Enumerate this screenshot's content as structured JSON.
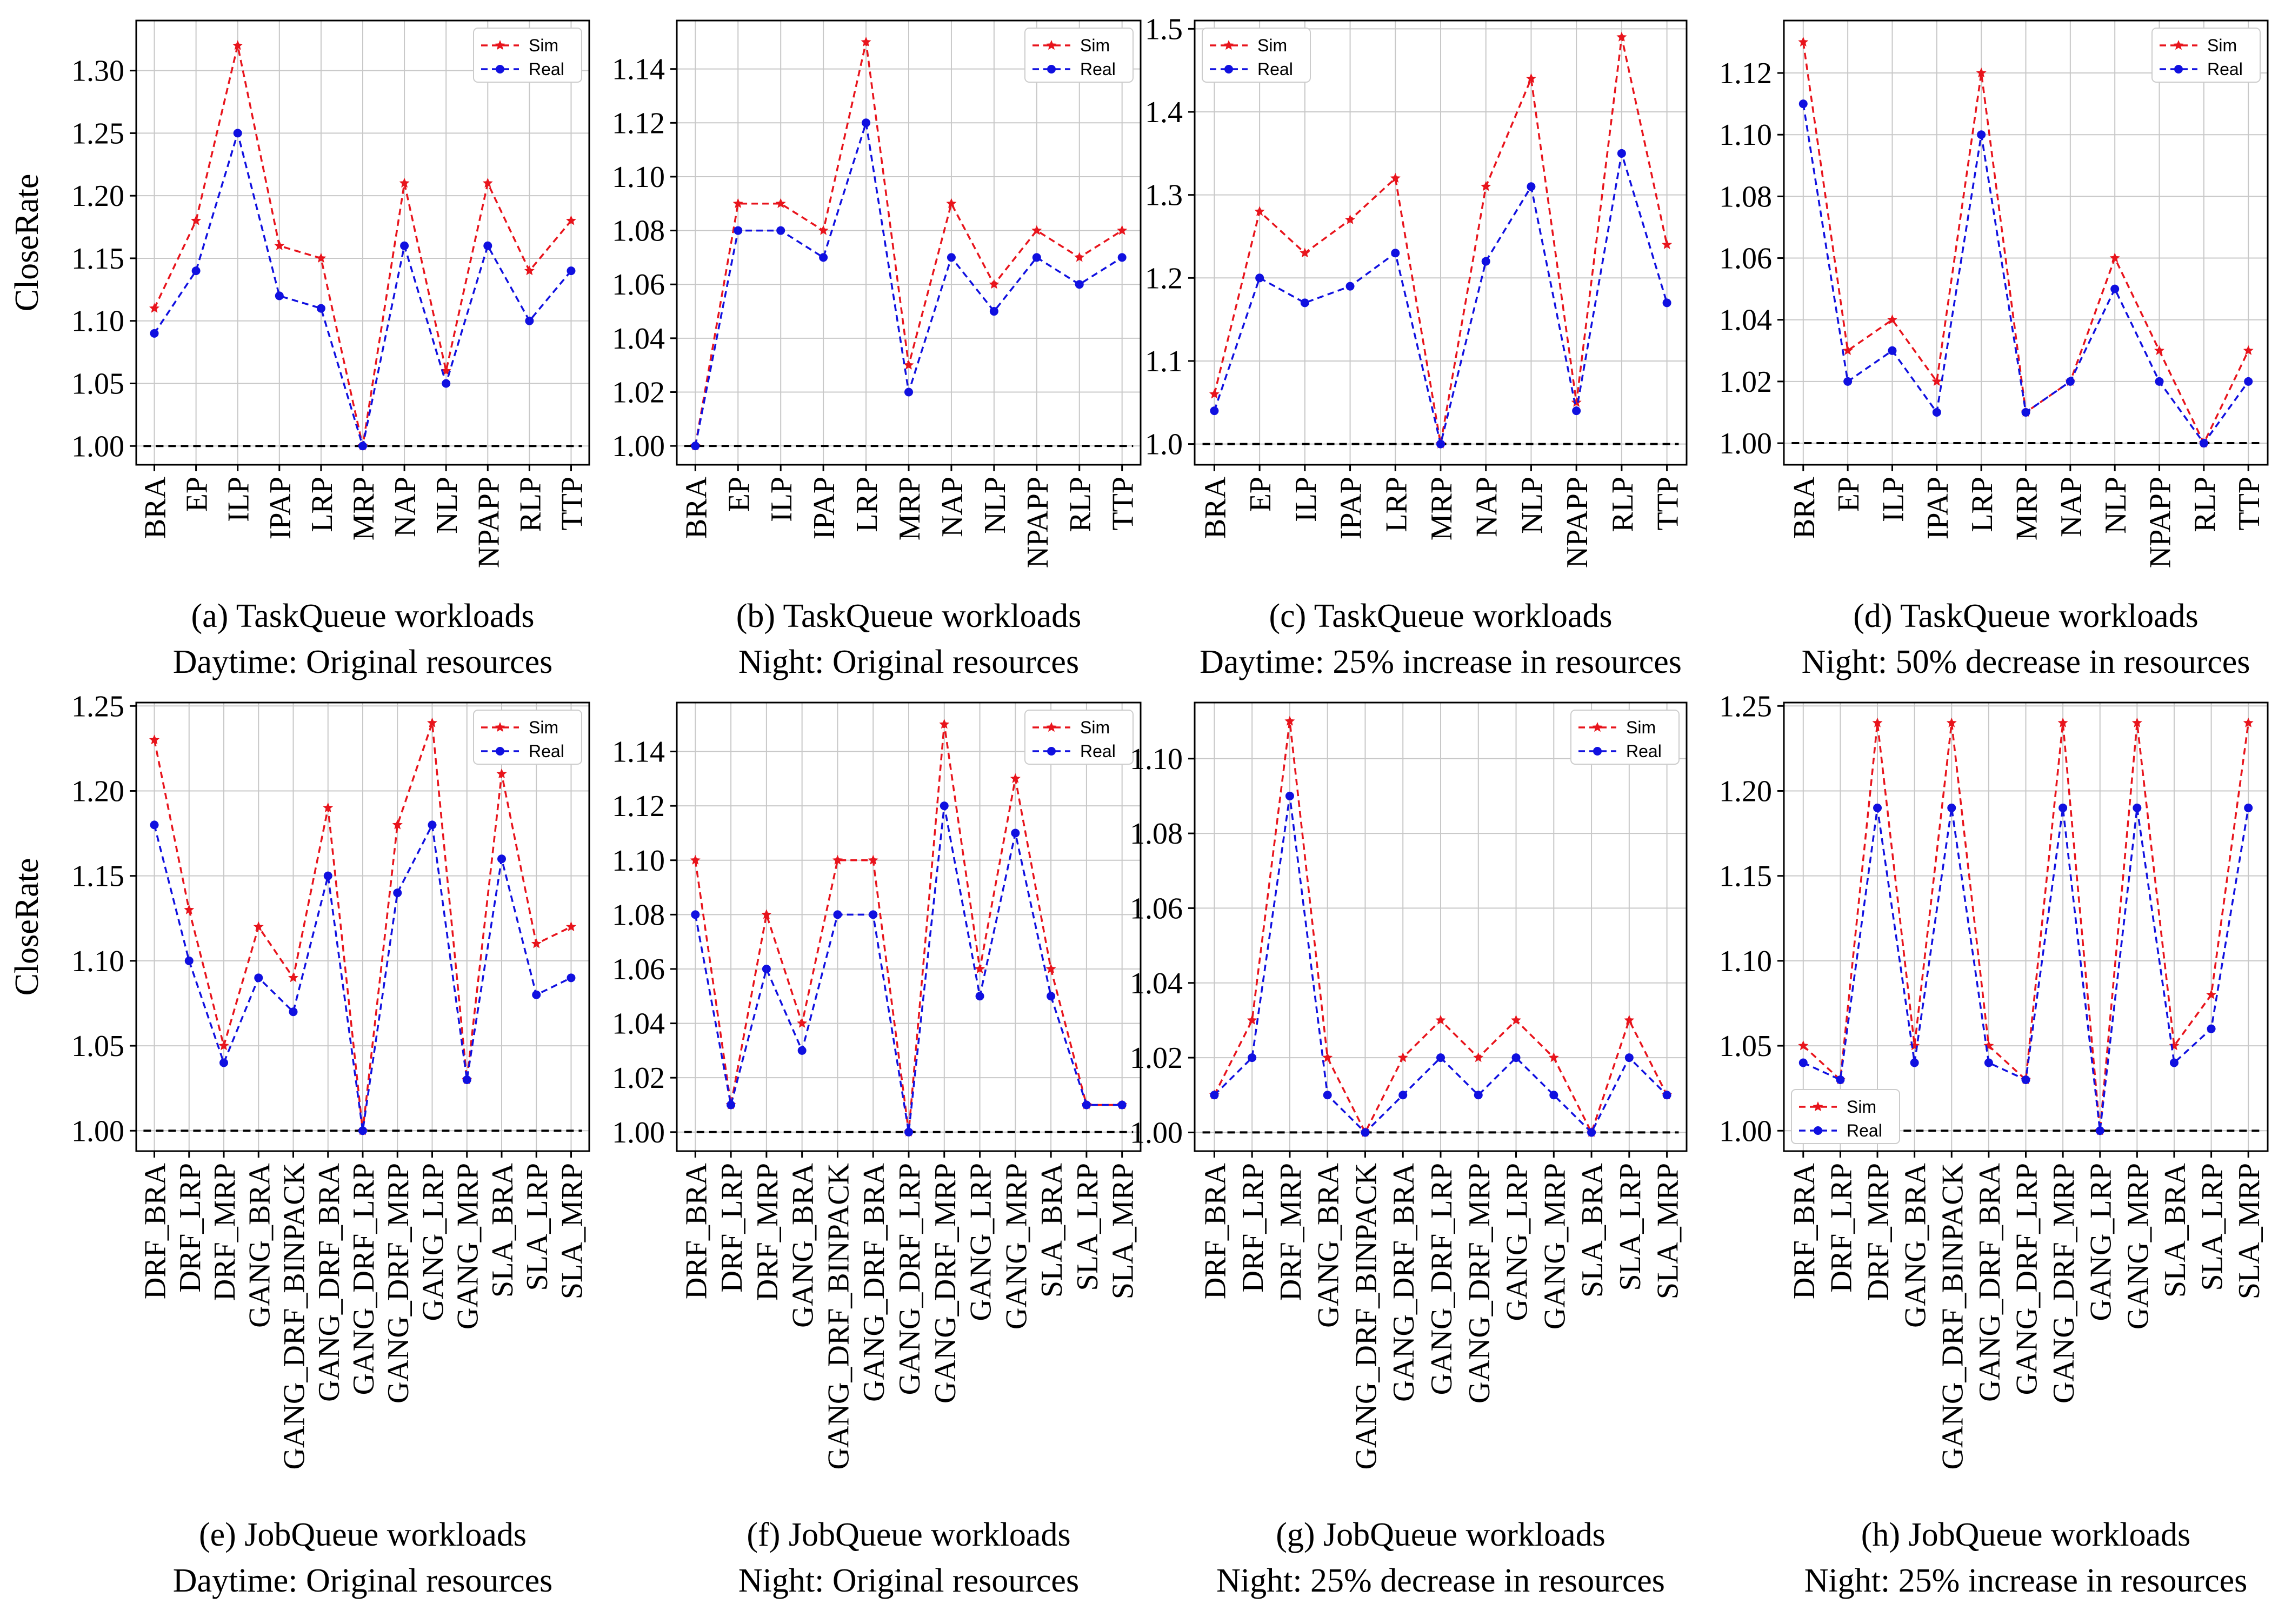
{
  "figure": {
    "ylabel": "CloseRate",
    "colors": {
      "sim": "#e8141c",
      "real": "#1010e0",
      "baseline": "#000000",
      "grid": "#c8c8c8"
    }
  },
  "chart_data": [
    {
      "id": "a",
      "type": "line",
      "caption": [
        "(a)  TaskQueue workloads",
        "Daytime: Original resources"
      ],
      "categories": [
        "BRA",
        "EP",
        "ILP",
        "IPAP",
        "LRP",
        "MRP",
        "NAP",
        "NLP",
        "NPAPP",
        "RLP",
        "TTP"
      ],
      "series": [
        {
          "name": "Sim",
          "values": [
            1.11,
            1.18,
            1.32,
            1.16,
            1.15,
            1.0,
            1.21,
            1.06,
            1.21,
            1.14,
            1.18
          ]
        },
        {
          "name": "Real",
          "values": [
            1.09,
            1.14,
            1.25,
            1.12,
            1.11,
            1.0,
            1.16,
            1.05,
            1.16,
            1.1,
            1.14
          ]
        }
      ],
      "baseline": 1.0,
      "ylim": [
        0.985,
        1.34
      ],
      "yticks": [
        1.0,
        1.05,
        1.1,
        1.15,
        1.2,
        1.25,
        1.3
      ],
      "ytick_labels": [
        "1.00",
        "1.05",
        "1.10",
        "1.15",
        "1.20",
        "1.25",
        "1.30"
      ],
      "legend": "top-right",
      "show_ylabel": true,
      "grid": true
    },
    {
      "id": "b",
      "type": "line",
      "caption": [
        "(b)  TaskQueue workloads",
        "Night: Original resources"
      ],
      "categories": [
        "BRA",
        "EP",
        "ILP",
        "IPAP",
        "LRP",
        "MRP",
        "NAP",
        "NLP",
        "NPAPP",
        "RLP",
        "TTP"
      ],
      "series": [
        {
          "name": "Sim",
          "values": [
            1.0,
            1.09,
            1.09,
            1.08,
            1.15,
            1.03,
            1.09,
            1.06,
            1.08,
            1.07,
            1.08
          ]
        },
        {
          "name": "Real",
          "values": [
            1.0,
            1.08,
            1.08,
            1.07,
            1.12,
            1.02,
            1.07,
            1.05,
            1.07,
            1.06,
            1.07
          ]
        }
      ],
      "baseline": 1.0,
      "ylim": [
        0.993,
        1.158
      ],
      "yticks": [
        1.0,
        1.02,
        1.04,
        1.06,
        1.08,
        1.1,
        1.12,
        1.14
      ],
      "ytick_labels": [
        "1.00",
        "1.02",
        "1.04",
        "1.06",
        "1.08",
        "1.10",
        "1.12",
        "1.14"
      ],
      "legend": "top-right",
      "show_ylabel": false,
      "grid": true
    },
    {
      "id": "c",
      "type": "line",
      "caption": [
        "(c)  TaskQueue workloads",
        "Daytime: 25% increase in resources"
      ],
      "categories": [
        "BRA",
        "EP",
        "ILP",
        "IPAP",
        "LRP",
        "MRP",
        "NAP",
        "NLP",
        "NPAPP",
        "RLP",
        "TTP"
      ],
      "series": [
        {
          "name": "Sim",
          "values": [
            1.06,
            1.28,
            1.23,
            1.27,
            1.32,
            1.0,
            1.31,
            1.44,
            1.05,
            1.49,
            1.24
          ]
        },
        {
          "name": "Real",
          "values": [
            1.04,
            1.2,
            1.17,
            1.19,
            1.23,
            1.0,
            1.22,
            1.31,
            1.04,
            1.35,
            1.17
          ]
        }
      ],
      "baseline": 1.0,
      "ylim": [
        0.975,
        1.51
      ],
      "yticks": [
        1.0,
        1.1,
        1.2,
        1.3,
        1.4,
        1.5
      ],
      "ytick_labels": [
        "1.0",
        "1.1",
        "1.2",
        "1.3",
        "1.4",
        "1.5"
      ],
      "legend": "top-left",
      "show_ylabel": false,
      "grid": true
    },
    {
      "id": "d",
      "type": "line",
      "caption": [
        "(d)  TaskQueue workloads",
        "Night: 50% decrease in resources"
      ],
      "categories": [
        "BRA",
        "EP",
        "ILP",
        "IPAP",
        "LRP",
        "MRP",
        "NAP",
        "NLP",
        "NPAPP",
        "RLP",
        "TTP"
      ],
      "series": [
        {
          "name": "Sim",
          "values": [
            1.13,
            1.03,
            1.04,
            1.02,
            1.12,
            1.01,
            1.02,
            1.06,
            1.03,
            1.0,
            1.03
          ]
        },
        {
          "name": "Real",
          "values": [
            1.11,
            1.02,
            1.03,
            1.01,
            1.1,
            1.01,
            1.02,
            1.05,
            1.02,
            1.0,
            1.02
          ]
        }
      ],
      "baseline": 1.0,
      "ylim": [
        0.993,
        1.137
      ],
      "yticks": [
        1.0,
        1.02,
        1.04,
        1.06,
        1.08,
        1.1,
        1.12
      ],
      "ytick_labels": [
        "1.00",
        "1.02",
        "1.04",
        "1.06",
        "1.08",
        "1.10",
        "1.12"
      ],
      "legend": "top-right",
      "show_ylabel": false,
      "grid": true
    },
    {
      "id": "e",
      "type": "line",
      "caption": [
        "(e)  JobQueue workloads",
        "Daytime: Original resources"
      ],
      "categories": [
        "DRF_BRA",
        "DRF_LRP",
        "DRF_MRP",
        "GANG_BRA",
        "GANG_DRF_BINPACK",
        "GANG_DRF_BRA",
        "GANG_DRF_LRP",
        "GANG_DRF_MRP",
        "GANG_LRP",
        "GANG_MRP",
        "SLA_BRA",
        "SLA_LRP",
        "SLA_MRP"
      ],
      "series": [
        {
          "name": "Sim",
          "values": [
            1.23,
            1.13,
            1.05,
            1.12,
            1.09,
            1.19,
            1.0,
            1.18,
            1.24,
            1.03,
            1.21,
            1.11,
            1.12
          ]
        },
        {
          "name": "Real",
          "values": [
            1.18,
            1.1,
            1.04,
            1.09,
            1.07,
            1.15,
            1.0,
            1.14,
            1.18,
            1.03,
            1.16,
            1.08,
            1.09
          ]
        }
      ],
      "baseline": 1.0,
      "ylim": [
        0.988,
        1.252
      ],
      "yticks": [
        1.0,
        1.05,
        1.1,
        1.15,
        1.2,
        1.25
      ],
      "ytick_labels": [
        "1.00",
        "1.05",
        "1.10",
        "1.15",
        "1.20",
        "1.25"
      ],
      "legend": "top-right",
      "show_ylabel": true,
      "grid": true
    },
    {
      "id": "f",
      "type": "line",
      "caption": [
        "(f)  JobQueue workloads",
        "Night: Original resources"
      ],
      "categories": [
        "DRF_BRA",
        "DRF_LRP",
        "DRF_MRP",
        "GANG_BRA",
        "GANG_DRF_BINPACK",
        "GANG_DRF_BRA",
        "GANG_DRF_LRP",
        "GANG_DRF_MRP",
        "GANG_LRP",
        "GANG_MRP",
        "SLA_BRA",
        "SLA_LRP",
        "SLA_MRP"
      ],
      "series": [
        {
          "name": "Sim",
          "values": [
            1.1,
            1.01,
            1.08,
            1.04,
            1.1,
            1.1,
            1.0,
            1.15,
            1.06,
            1.13,
            1.06,
            1.01,
            1.01
          ]
        },
        {
          "name": "Real",
          "values": [
            1.08,
            1.01,
            1.06,
            1.03,
            1.08,
            1.08,
            1.0,
            1.12,
            1.05,
            1.11,
            1.05,
            1.01,
            1.01
          ]
        }
      ],
      "baseline": 1.0,
      "ylim": [
        0.993,
        1.158
      ],
      "yticks": [
        1.0,
        1.02,
        1.04,
        1.06,
        1.08,
        1.1,
        1.12,
        1.14
      ],
      "ytick_labels": [
        "1.00",
        "1.02",
        "1.04",
        "1.06",
        "1.08",
        "1.10",
        "1.12",
        "1.14"
      ],
      "legend": "top-right",
      "show_ylabel": false,
      "grid": true
    },
    {
      "id": "g",
      "type": "line",
      "caption": [
        "(g)  JobQueue workloads",
        "Night: 25% decrease in resources"
      ],
      "categories": [
        "DRF_BRA",
        "DRF_LRP",
        "DRF_MRP",
        "GANG_BRA",
        "GANG_DRF_BINPACK",
        "GANG_DRF_BRA",
        "GANG_DRF_LRP",
        "GANG_DRF_MRP",
        "GANG_LRP",
        "GANG_MRP",
        "SLA_BRA",
        "SLA_LRP",
        "SLA_MRP"
      ],
      "series": [
        {
          "name": "Sim",
          "values": [
            1.01,
            1.03,
            1.11,
            1.02,
            1.0,
            1.02,
            1.03,
            1.02,
            1.03,
            1.02,
            1.0,
            1.03,
            1.01
          ]
        },
        {
          "name": "Real",
          "values": [
            1.01,
            1.02,
            1.09,
            1.01,
            1.0,
            1.01,
            1.02,
            1.01,
            1.02,
            1.01,
            1.0,
            1.02,
            1.01
          ]
        }
      ],
      "baseline": 1.0,
      "ylim": [
        0.995,
        1.115
      ],
      "yticks": [
        1.0,
        1.02,
        1.04,
        1.06,
        1.08,
        1.1
      ],
      "ytick_labels": [
        "1.00",
        "1.02",
        "1.04",
        "1.06",
        "1.08",
        "1.10"
      ],
      "legend": "top-right",
      "show_ylabel": false,
      "grid": true
    },
    {
      "id": "h",
      "type": "line",
      "caption": [
        "(h)  JobQueue workloads",
        "Night: 25% increase in resources"
      ],
      "categories": [
        "DRF_BRA",
        "DRF_LRP",
        "DRF_MRP",
        "GANG_BRA",
        "GANG_DRF_BINPACK",
        "GANG_DRF_BRA",
        "GANG_DRF_LRP",
        "GANG_DRF_MRP",
        "GANG_LRP",
        "GANG_MRP",
        "SLA_BRA",
        "SLA_LRP",
        "SLA_MRP"
      ],
      "series": [
        {
          "name": "Sim",
          "values": [
            1.05,
            1.03,
            1.24,
            1.05,
            1.24,
            1.05,
            1.03,
            1.24,
            1.0,
            1.24,
            1.05,
            1.08,
            1.24
          ]
        },
        {
          "name": "Real",
          "values": [
            1.04,
            1.03,
            1.19,
            1.04,
            1.19,
            1.04,
            1.03,
            1.19,
            1.0,
            1.19,
            1.04,
            1.06,
            1.19
          ]
        }
      ],
      "baseline": 1.0,
      "ylim": [
        0.988,
        1.252
      ],
      "yticks": [
        1.0,
        1.05,
        1.1,
        1.15,
        1.2,
        1.25
      ],
      "ytick_labels": [
        "1.00",
        "1.05",
        "1.10",
        "1.15",
        "1.20",
        "1.25"
      ],
      "legend": "bottom-left",
      "show_ylabel": false,
      "grid": true
    }
  ]
}
